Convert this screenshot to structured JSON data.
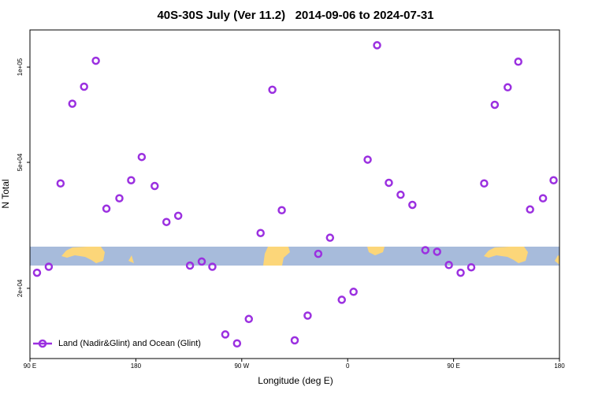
{
  "chart_data": {
    "type": "scatter",
    "title": "40S-30S July (Ver 11.2)   2014-09-06 to 2024-07-31",
    "x_label": "Longitude (deg E)",
    "y_label": "N Total",
    "log_y": true,
    "legend": "bottom-left",
    "xlim": [
      90,
      540
    ],
    "xticks": [
      {
        "value": 90,
        "label": "90 E"
      },
      180,
      {
        "value": 270,
        "label": "90 W"
      },
      {
        "value": 360,
        "label": "0"
      },
      {
        "value": 450,
        "label": "90 E"
      },
      {
        "value": 540,
        "label": "180"
      }
    ],
    "ylim": [
      12000,
      131000
    ],
    "yticks": [
      {
        "value": 20000,
        "label": "2e+04"
      },
      {
        "value": 50000,
        "label": "5e+04"
      },
      {
        "value": 100000,
        "label": "1e+05"
      }
    ],
    "series": [
      {
        "name": "Land (Nadir&Glint) and Ocean (Glint)",
        "color": "#9b30e0",
        "x": [
          96,
          106,
          116,
          126,
          136,
          146,
          155,
          166,
          176,
          185,
          196,
          206,
          216,
          226,
          236,
          245,
          256,
          266,
          276,
          286,
          296,
          304,
          315,
          326,
          335,
          345,
          355,
          365,
          377,
          385,
          395,
          405,
          415,
          426,
          436,
          446,
          456,
          465,
          476,
          485,
          496,
          505,
          515,
          526,
          535
        ],
        "values": [
          22400,
          23400,
          42900,
          76600,
          86700,
          104700,
          35700,
          38500,
          43900,
          52000,
          42100,
          32400,
          33900,
          23600,
          24300,
          23400,
          14300,
          13400,
          16000,
          29900,
          84800,
          35300,
          13700,
          16400,
          25700,
          28900,
          18400,
          19500,
          51000,
          117200,
          43100,
          39500,
          36700,
          26400,
          26100,
          23700,
          22400,
          23300,
          42900,
          76000,
          86300,
          104000,
          35500,
          38500,
          43900
        ]
      }
    ]
  }
}
